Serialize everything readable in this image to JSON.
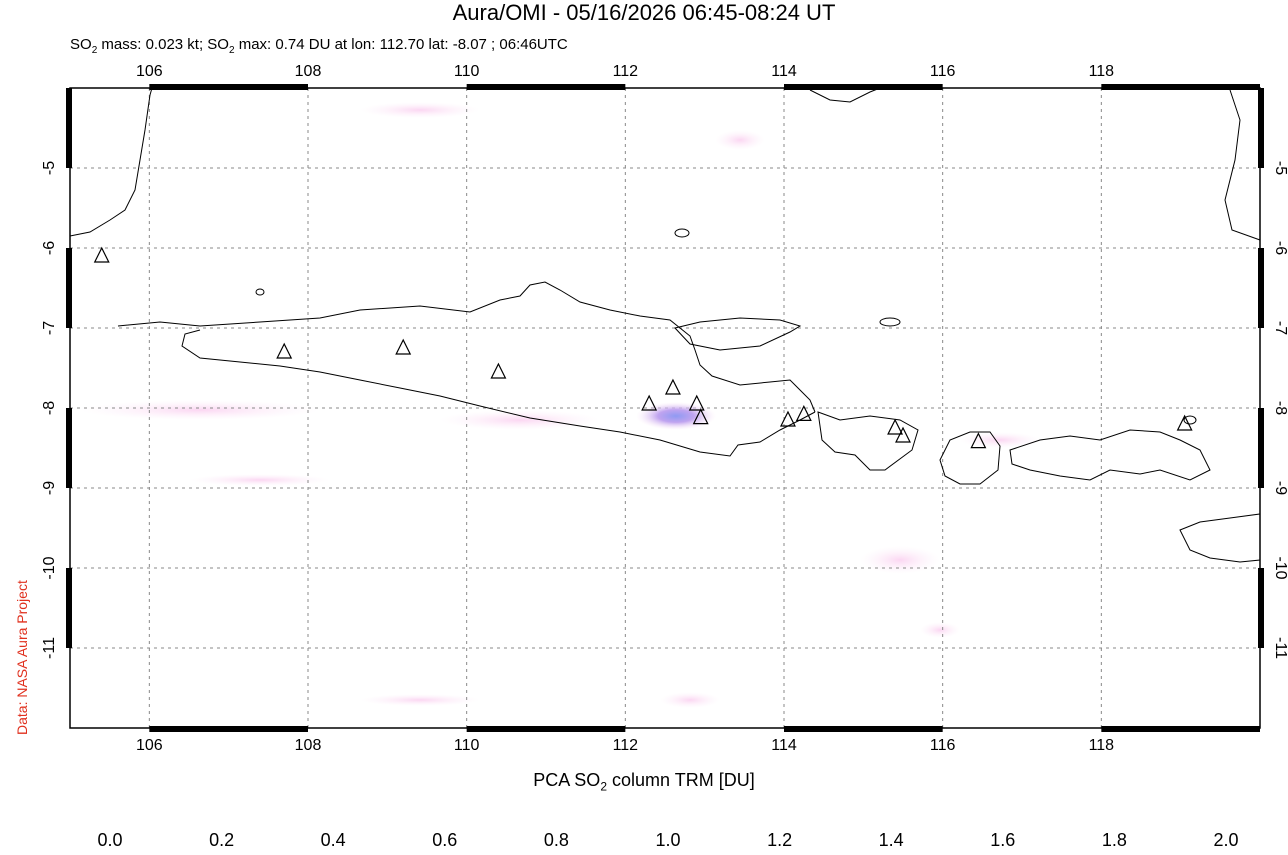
{
  "header": {
    "title": "Aura/OMI - 05/16/2026 06:45-08:24 UT",
    "subtitle_prefix": "SO",
    "subtitle_sub": "2",
    "subtitle_mid": " mass: 0.023 kt; SO",
    "subtitle_sub2": "2",
    "subtitle_rest": " max: 0.74 DU at lon: 112.70 lat: -8.07 ; 06:46UTC"
  },
  "credit": "Data: NASA Aura Project",
  "map": {
    "lon_range": [
      105,
      120
    ],
    "lat_range": [
      -12,
      -4
    ],
    "lon_ticks": [
      "106",
      "108",
      "110",
      "112",
      "114",
      "116",
      "118"
    ],
    "lat_ticks": [
      "-5",
      "-6",
      "-7",
      "-8",
      "-9",
      "-10",
      "-11"
    ],
    "volcanoes": [
      {
        "lon": 105.4,
        "lat": -6.1
      },
      {
        "lon": 107.7,
        "lat": -7.3
      },
      {
        "lon": 109.2,
        "lat": -7.25
      },
      {
        "lon": 110.4,
        "lat": -7.55
      },
      {
        "lon": 112.3,
        "lat": -7.95
      },
      {
        "lon": 112.6,
        "lat": -7.75
      },
      {
        "lon": 112.9,
        "lat": -7.95
      },
      {
        "lon": 112.95,
        "lat": -8.12
      },
      {
        "lon": 114.05,
        "lat": -8.15
      },
      {
        "lon": 114.25,
        "lat": -8.08
      },
      {
        "lon": 115.4,
        "lat": -8.25
      },
      {
        "lon": 115.5,
        "lat": -8.35
      },
      {
        "lon": 116.45,
        "lat": -8.42
      },
      {
        "lon": 119.05,
        "lat": -8.2
      }
    ],
    "so2_max": {
      "lon": 112.7,
      "lat": -8.07,
      "value": 0.74
    }
  },
  "colorbar": {
    "title_prefix": "PCA SO",
    "title_sub": "2",
    "title_rest": " column TRM [DU]",
    "ticks": [
      "0.0",
      "0.2",
      "0.4",
      "0.6",
      "0.8",
      "1.0",
      "1.2",
      "1.4",
      "1.6",
      "1.8",
      "2.0"
    ],
    "colors": [
      "#ffffff",
      "#fde6f6",
      "#fcc0f0",
      "#e0a8f2",
      "#a9a4f6",
      "#88c8ff",
      "#6ef6f0",
      "#6ef07a",
      "#7cf04a",
      "#e8f03c",
      "#f8b030",
      "#f44820",
      "#e81010"
    ]
  }
}
